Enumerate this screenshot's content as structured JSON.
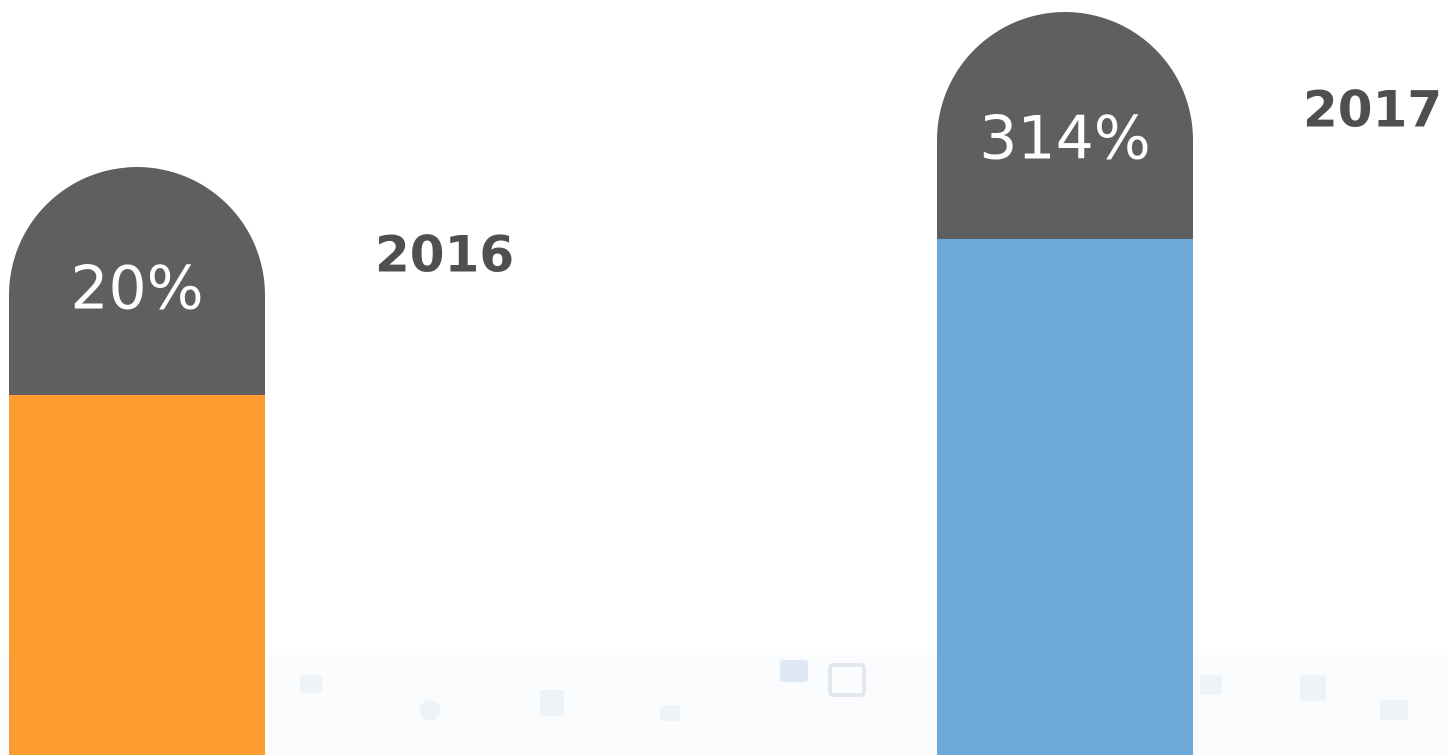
{
  "items": [
    {
      "year": "2016",
      "value": "20%",
      "color": "#fd9c31",
      "cap_color": "#5f5f5f"
    },
    {
      "year": "2017",
      "value": "314%",
      "color": "#6eaad9",
      "cap_color": "#5f5f5f"
    }
  ]
}
